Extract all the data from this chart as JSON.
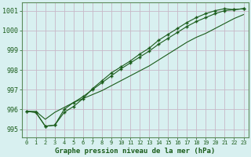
{
  "xlabel": "Graphe pression niveau de la mer (hPa)",
  "background_color": "#d8f0f0",
  "grid_color": "#c8b8c8",
  "line_color": "#1a5c1a",
  "border_color": "#5a8a5a",
  "ylim": [
    994.6,
    1001.4
  ],
  "xlim": [
    -0.5,
    23.5
  ],
  "yticks": [
    995,
    996,
    997,
    998,
    999,
    1000,
    1001
  ],
  "xticks": [
    0,
    1,
    2,
    3,
    4,
    5,
    6,
    7,
    8,
    9,
    10,
    11,
    12,
    13,
    14,
    15,
    16,
    17,
    18,
    19,
    20,
    21,
    22,
    23
  ],
  "series1": [
    995.9,
    995.85,
    995.15,
    995.2,
    995.85,
    996.15,
    996.55,
    997.05,
    997.45,
    997.85,
    998.15,
    998.45,
    998.8,
    999.1,
    999.5,
    999.8,
    1000.1,
    1000.4,
    1000.65,
    1000.85,
    1001.0,
    1001.1,
    1001.05,
    1001.1
  ],
  "series2": [
    995.9,
    995.85,
    995.15,
    995.2,
    996.0,
    996.35,
    996.65,
    997.0,
    997.35,
    997.7,
    998.05,
    998.35,
    998.65,
    998.95,
    999.3,
    999.6,
    999.9,
    1000.2,
    1000.45,
    1000.65,
    1000.85,
    1001.0,
    1001.05,
    1001.1
  ],
  "series3": [
    995.9,
    995.9,
    995.5,
    995.85,
    996.1,
    996.35,
    996.55,
    996.75,
    996.95,
    997.2,
    997.45,
    997.7,
    997.95,
    998.2,
    998.5,
    998.8,
    999.1,
    999.4,
    999.65,
    999.85,
    1000.1,
    1000.35,
    1000.6,
    1000.8
  ]
}
